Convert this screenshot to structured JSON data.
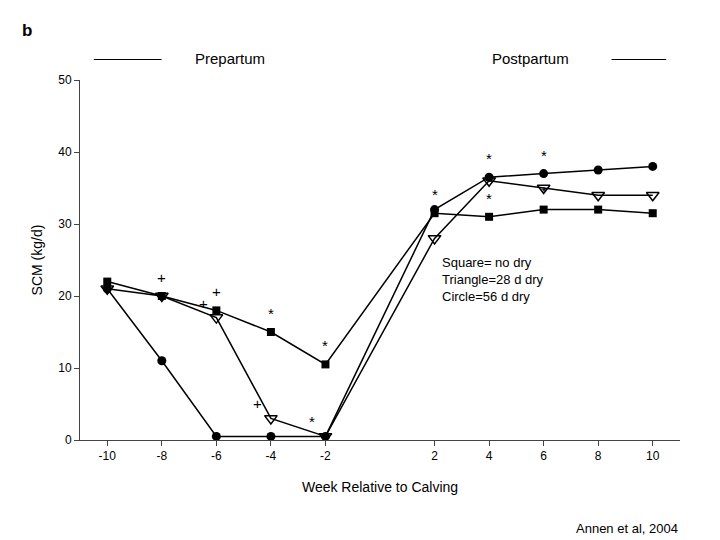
{
  "chart_data": {
    "type": "line",
    "x": [
      -10,
      -8,
      -6,
      -4,
      -2,
      2,
      4,
      6,
      8,
      10
    ],
    "series": [
      {
        "values": [
          22,
          20,
          18,
          15,
          10.5,
          31.5,
          31,
          32,
          32,
          31.5
        ],
        "color": "#000000",
        "marker": "square",
        "annotations": [
          {
            "x": -8,
            "text": "+"
          },
          {
            "x": -6,
            "text": "+"
          },
          {
            "x": -4,
            "text": "*"
          },
          {
            "x": -2,
            "text": "*"
          },
          {
            "x": 2,
            "text": "*"
          },
          {
            "x": 4,
            "text": "*"
          },
          {
            "x": 6,
            "text": "*"
          }
        ]
      },
      {
        "values": [
          21,
          20,
          17,
          3,
          0.5,
          28,
          36,
          35,
          34,
          34
        ],
        "color": "#000000",
        "marker": "triangle-down-open",
        "annotations": [
          {
            "x": -6,
            "text": "+"
          },
          {
            "x": -4,
            "text": "+"
          },
          {
            "x": -2,
            "text": "*"
          }
        ]
      },
      {
        "values": [
          21,
          11,
          0.5,
          0.5,
          0.5,
          32,
          36.5,
          37,
          37.5,
          38
        ],
        "color": "#000000",
        "marker": "circle",
        "annotations": [
          {
            "x": 4,
            "text": "*"
          },
          {
            "x": 6,
            "text": "*"
          }
        ]
      }
    ],
    "xlabel": "Week Relative to Calving",
    "ylabel": "SCM (kg/d)",
    "xlim": [
      -11,
      11
    ],
    "xticks": [
      -10,
      -8,
      -6,
      -4,
      -2,
      2,
      4,
      6,
      8,
      10
    ],
    "ylim": [
      0,
      50
    ],
    "yticks": [
      0,
      10,
      20,
      30,
      40,
      50
    ],
    "grid": false,
    "annotations": [
      "b",
      "Prepartum",
      "Postpartum",
      "Square= no dry",
      "Triangle=28 d dry",
      "Circle=56 d dry",
      "Annen et al, 2004"
    ]
  }
}
